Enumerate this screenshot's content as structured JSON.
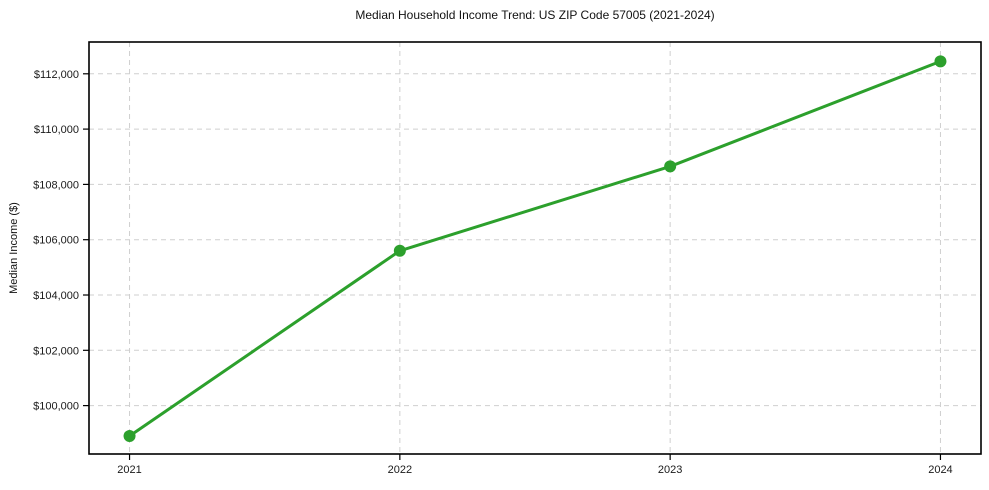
{
  "chart_data": {
    "type": "line",
    "title": "Median Household Income Trend: US ZIP Code 57005 (2021-2024)",
    "xlabel": "",
    "ylabel": "Median Income ($)",
    "series": [
      {
        "name": "Median Household Income",
        "x": [
          2021,
          2022,
          2023,
          2024
        ],
        "values": [
          98900,
          105600,
          108650,
          112450
        ]
      }
    ],
    "xticks": [
      2021,
      2022,
      2023,
      2024
    ],
    "xtick_labels": [
      "2021",
      "2022",
      "2023",
      "2024"
    ],
    "yticks": [
      100000,
      102000,
      104000,
      106000,
      108000,
      110000,
      112000
    ],
    "ytick_labels": [
      "$100,000",
      "$102,000",
      "$104,000",
      "$106,000",
      "$108,000",
      "$110,000",
      "$112,000"
    ],
    "xlim": [
      2020.85,
      2024.15
    ],
    "ylim": [
      98250,
      113150
    ],
    "grid": true,
    "grid_style": "dashed",
    "legend_position": "none",
    "colors": {
      "line": "#2ca02c",
      "marker": "#2ca02c",
      "grid": "#cfcfcf",
      "spine": "#000000",
      "text": "#1a1a1a",
      "background": "#ffffff"
    }
  }
}
